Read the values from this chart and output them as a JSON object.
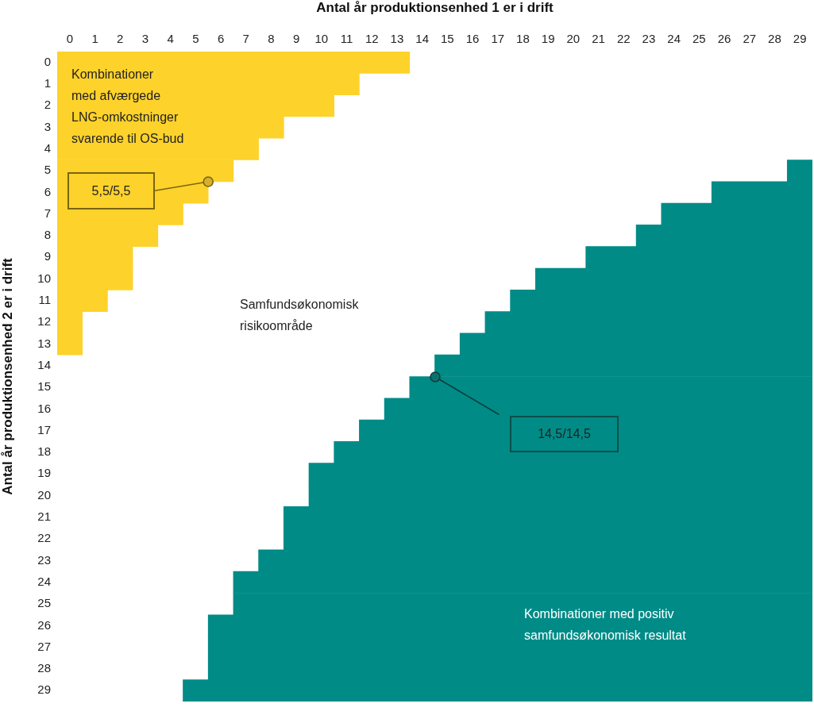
{
  "chart_data": {
    "type": "bar",
    "orientation": "horizontal",
    "xlabel": "Antal år produktionsenhed 1 er i drift",
    "ylabel": "Antal år produktionsenhed 2 er i drift",
    "categories": [
      "0",
      "1",
      "2",
      "3",
      "4",
      "5",
      "6",
      "7",
      "8",
      "9",
      "10",
      "11",
      "12",
      "13",
      "14",
      "15",
      "16",
      "17",
      "18",
      "19",
      "20",
      "21",
      "22",
      "23",
      "24",
      "25",
      "26",
      "27",
      "28",
      "29"
    ],
    "series": [
      {
        "color": "#fdd22b",
        "values": [
          14,
          12,
          11,
          9,
          8,
          7,
          6,
          5,
          4,
          3,
          3,
          2,
          1,
          1,
          null,
          null,
          null,
          null,
          null,
          null,
          null,
          null,
          null,
          null,
          null,
          null,
          null,
          null,
          null,
          null
        ]
      },
      {
        "color": "#008b87",
        "values": [
          null,
          null,
          null,
          null,
          null,
          1,
          4,
          6,
          7,
          9,
          11,
          12,
          13,
          14,
          15,
          16,
          17,
          18,
          19,
          20,
          20,
          21,
          21,
          22,
          23,
          23,
          24,
          24,
          24,
          25
        ],
        "base": [
          null,
          null,
          null,
          null,
          null,
          29,
          26,
          24,
          23,
          21,
          19,
          18,
          17,
          16,
          15,
          14,
          13,
          12,
          11,
          10,
          10,
          9,
          9,
          8,
          7,
          7,
          6,
          6,
          6,
          5
        ]
      }
    ],
    "xlim": [
      0,
      30
    ],
    "xticks": [
      {
        "value": 0.5,
        "label": "0"
      },
      {
        "value": 1.5,
        "label": "1"
      },
      {
        "value": 2.5,
        "label": "2"
      },
      {
        "value": 3.5,
        "label": "3"
      },
      {
        "value": 4.5,
        "label": "4"
      },
      {
        "value": 5.5,
        "label": "5"
      },
      {
        "value": 6.5,
        "label": "6"
      },
      {
        "value": 7.5,
        "label": "7"
      },
      {
        "value": 8.5,
        "label": "8"
      },
      {
        "value": 9.5,
        "label": "9"
      },
      {
        "value": 10.5,
        "label": "10"
      },
      {
        "value": 11.5,
        "label": "11"
      },
      {
        "value": 12.5,
        "label": "12"
      },
      {
        "value": 13.5,
        "label": "13"
      },
      {
        "value": 14.5,
        "label": "14"
      },
      {
        "value": 15.5,
        "label": "15"
      },
      {
        "value": 16.5,
        "label": "16"
      },
      {
        "value": 17.5,
        "label": "17"
      },
      {
        "value": 18.5,
        "label": "18"
      },
      {
        "value": 19.5,
        "label": "19"
      },
      {
        "value": 20.5,
        "label": "20"
      },
      {
        "value": 21.5,
        "label": "21"
      },
      {
        "value": 22.5,
        "label": "22"
      },
      {
        "value": 23.5,
        "label": "23"
      },
      {
        "value": 24.5,
        "label": "24"
      },
      {
        "value": 25.5,
        "label": "25"
      },
      {
        "value": 26.5,
        "label": "26"
      },
      {
        "value": 27.5,
        "label": "27"
      },
      {
        "value": 28.5,
        "label": "28"
      },
      {
        "value": 29.5,
        "label": "29"
      }
    ],
    "annotations": [
      "Kombinationer\nmed afværgede\nLNG-omkostninger\nsvarende til OS-bud",
      "5,5/5,5",
      "Samfundsøkonomisk\nrisikoområde",
      "14,5/14,5",
      "Kombinationer med positiv\nsamfundsøkonomisk resultat"
    ],
    "legend": false
  }
}
